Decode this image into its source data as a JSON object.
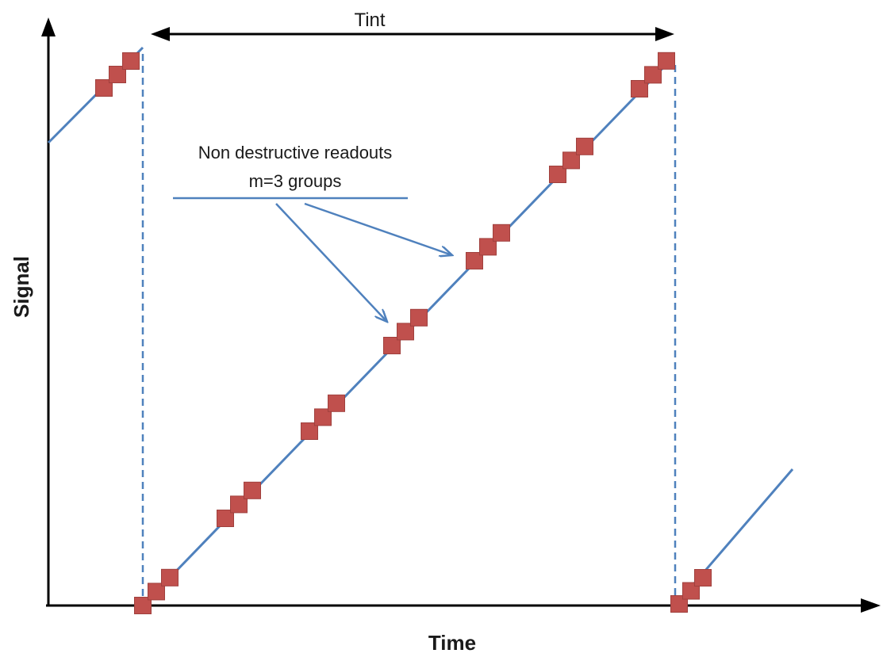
{
  "axes": {
    "x_title": "Time",
    "y_title": "Signal"
  },
  "interval_label": "Tint",
  "annotation": {
    "line1": "Non destructive readouts",
    "line2": "m=3 groups"
  },
  "colors": {
    "ramp": "#4f81bd",
    "marker_fill": "#c0504d",
    "marker_stroke": "#a0403d",
    "axis": "#000000",
    "dashed": "#4f81bd"
  },
  "readout_group_size": 3,
  "readout_groups_in_main_ramp": 7
}
